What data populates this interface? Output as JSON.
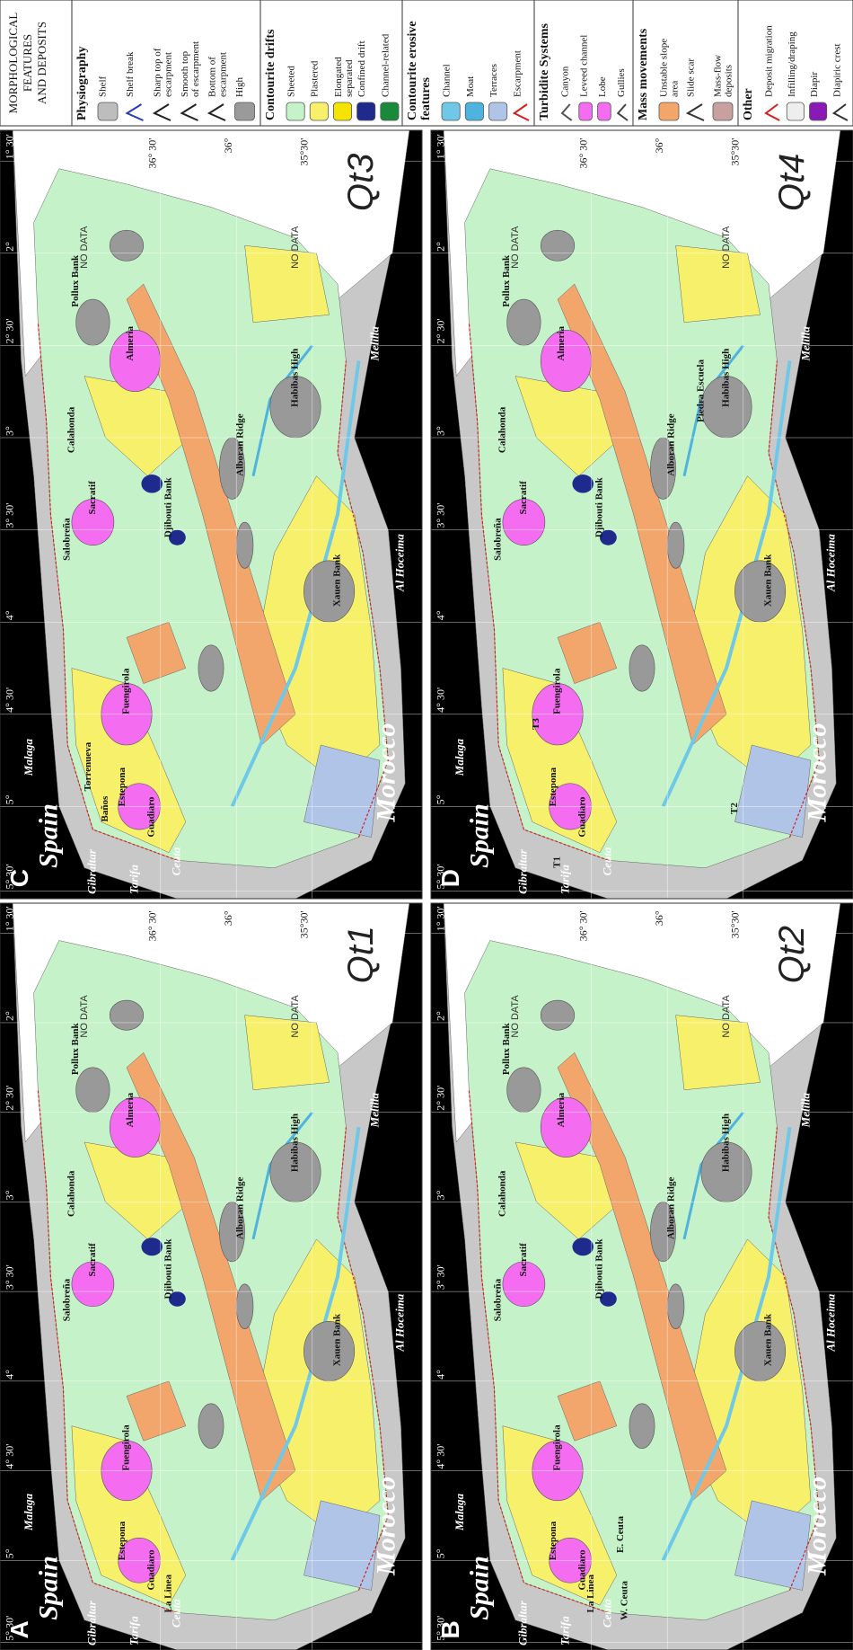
{
  "legend": {
    "title_lines": [
      "MORPHOLOGICAL",
      "FEATURES",
      "AND DEPOSITS"
    ],
    "sections": [
      {
        "title_lines": [
          "Physiography"
        ],
        "items": [
          {
            "label_lines": [
              "Shelf"
            ],
            "color": "#bdbdbd"
          },
          {
            "label_lines": [
              "Shelf break"
            ],
            "color": "#2a3bb5"
          },
          {
            "label_lines": [
              "Sharp top of",
              "escarpment"
            ],
            "color": "#222222"
          },
          {
            "label_lines": [
              "Smooth top",
              "of escarpment"
            ],
            "color": "#222222"
          },
          {
            "label_lines": [
              "Bottom of",
              "escarpment"
            ],
            "color": "#222222"
          },
          {
            "label_lines": [
              "High"
            ],
            "color": "#9a9a9a"
          }
        ]
      },
      {
        "title_lines": [
          "Contourite drifts"
        ],
        "items": [
          {
            "label_lines": [
              "Sheeted"
            ],
            "color": "#c5f2c8"
          },
          {
            "label_lines": [
              "Plastered"
            ],
            "color": "#f7f06b"
          },
          {
            "label_lines": [
              "Elongated",
              "separated"
            ],
            "color": "#f5e400"
          },
          {
            "label_lines": [
              "Confined drift"
            ],
            "color": "#1e2b8c"
          },
          {
            "label_lines": [
              "Channel-related"
            ],
            "color": "#1a8a3a"
          }
        ]
      },
      {
        "title_lines": [
          "Contourite erosive",
          "features"
        ],
        "items": [
          {
            "label_lines": [
              "Channel"
            ],
            "color": "#6fc8e8"
          },
          {
            "label_lines": [
              "Moat"
            ],
            "color": "#4fb3e0"
          },
          {
            "label_lines": [
              "Terraces"
            ],
            "color": "#b0c4e8"
          },
          {
            "label_lines": [
              "Escarpment"
            ],
            "color": "#d62020"
          }
        ]
      },
      {
        "title_lines": [
          "Turbidite Systems"
        ],
        "items": [
          {
            "label_lines": [
              "Canyon"
            ],
            "color": "#555555"
          },
          {
            "label_lines": [
              "Leveed channel"
            ],
            "color": "#f46cf0"
          },
          {
            "label_lines": [
              "Lobe"
            ],
            "color": "#f46cf0"
          },
          {
            "label_lines": [
              "Gullies"
            ],
            "color": "#444444"
          }
        ]
      },
      {
        "title_lines": [
          "Mass movements"
        ],
        "items": [
          {
            "label_lines": [
              "Unstable slope",
              "area"
            ],
            "color": "#f3a66c"
          },
          {
            "label_lines": [
              "Slide scar"
            ],
            "color": "#333333"
          },
          {
            "label_lines": [
              "Mass-flow",
              "deposits"
            ],
            "color": "#c9a0a0"
          }
        ]
      },
      {
        "title_lines": [
          "Other"
        ],
        "items": [
          {
            "label_lines": [
              "Deposit migration"
            ],
            "color": "#d62020"
          },
          {
            "label_lines": [
              "Infilling/draping"
            ],
            "color": "#eeeeee"
          },
          {
            "label_lines": [
              "Diapir"
            ],
            "color": "#8a1ab5"
          },
          {
            "label_lines": [
              "Diapiric crest"
            ],
            "color": "#333333"
          }
        ]
      }
    ]
  },
  "map": {
    "places": [
      "Spain",
      "Morocco",
      "Gibraltar",
      "Tarifa",
      "Ceuta",
      "Malaga",
      "Al Hoceima",
      "Melilla",
      "NO DATA",
      "NO DATA",
      "Xauen Bank",
      "Habibas High",
      "Alboran Ridge",
      "Djibouti Bank",
      "Sacratif",
      "Almeria",
      "Pollux Bank",
      "Fuengirola",
      "Estepona",
      "Guadiaro",
      "Calahonda",
      "Salobreña"
    ],
    "longitudes": [
      "5° 30'",
      "5°",
      "4° 30'",
      "4°",
      "3° 30'",
      "3°",
      "2° 30'",
      "2°",
      "1° 30'"
    ],
    "latitudes": [
      "36° 30'",
      "36°",
      "35°30'"
    ]
  },
  "panels": [
    {
      "letter": "A",
      "stage": "Qt1",
      "labels": [
        "La Linea"
      ]
    },
    {
      "letter": "B",
      "stage": "Qt2",
      "labels": [
        "E. Ceuta",
        "W. Ceuta",
        "La Linea"
      ]
    },
    {
      "letter": "C",
      "stage": "Qt3",
      "labels": [
        "Baños",
        "Torrenueva"
      ]
    },
    {
      "letter": "D",
      "stage": "Qt4",
      "labels": [
        "T1",
        "T2",
        "T3",
        "Piedra Escuela"
      ]
    }
  ]
}
